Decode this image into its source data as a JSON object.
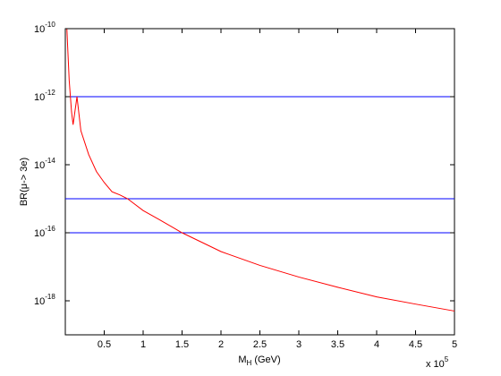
{
  "chart_data": {
    "type": "line",
    "xlabel_main": "M",
    "xlabel_sub": "H",
    "xlabel_rest": " (GeV)",
    "ylabel": "BR(μ-> 3e)",
    "x_multiplier": "x 10",
    "x_multiplier_exp": "5",
    "xlim": [
      0,
      500000
    ],
    "ylim_log10": [
      -19,
      -10
    ],
    "x_scale": "linear",
    "y_scale": "log",
    "grid": false,
    "x_ticks": [
      {
        "value": 50000,
        "label": "0.5"
      },
      {
        "value": 100000,
        "label": "1"
      },
      {
        "value": 150000,
        "label": "1.5"
      },
      {
        "value": 200000,
        "label": "2"
      },
      {
        "value": 250000,
        "label": "2.5"
      },
      {
        "value": 300000,
        "label": "3"
      },
      {
        "value": 350000,
        "label": "3.5"
      },
      {
        "value": 400000,
        "label": "4"
      },
      {
        "value": 450000,
        "label": "4.5"
      },
      {
        "value": 500000,
        "label": "5"
      }
    ],
    "y_ticks": [
      {
        "exp": -10,
        "base": "10",
        "label": "-10"
      },
      {
        "exp": -12,
        "base": "10",
        "label": "-12"
      },
      {
        "exp": -14,
        "base": "10",
        "label": "-14"
      },
      {
        "exp": -16,
        "base": "10",
        "label": "-16"
      },
      {
        "exp": -18,
        "base": "10",
        "label": "-18"
      }
    ],
    "hlines": [
      {
        "y": 1e-12,
        "color": "#0000ff"
      },
      {
        "y": 1e-15,
        "color": "#0000ff"
      },
      {
        "y": 1e-16,
        "color": "#0000ff"
      }
    ],
    "series": [
      {
        "color": "#ff0000",
        "x": [
          2000,
          3000,
          5000,
          8000,
          10000,
          15000,
          20000,
          30000,
          40000,
          50000,
          60000,
          70000,
          80000,
          100000,
          120000,
          150000,
          200000,
          250000,
          300000,
          350000,
          400000,
          450000,
          500000
        ],
        "y": [
          1e-10,
          3e-11,
          3e-12,
          3.6e-13,
          1.5e-13,
          1e-12,
          1e-13,
          2e-14,
          6.3e-15,
          3e-15,
          1.6e-15,
          1.3e-15,
          1e-15,
          4.5e-16,
          2.5e-16,
          1e-16,
          2.8e-17,
          1.1e-17,
          5e-18,
          2.5e-18,
          1.3e-18,
          8e-19,
          5e-19
        ]
      }
    ]
  }
}
